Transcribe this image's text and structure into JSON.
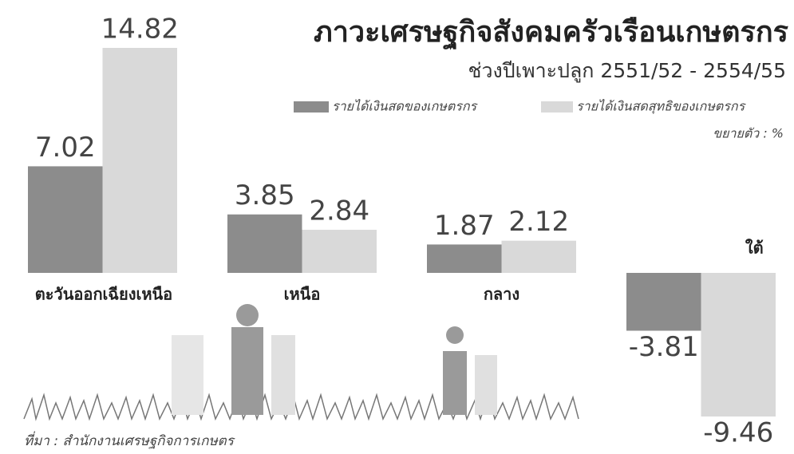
{
  "chart_data": {
    "type": "bar",
    "title": "ภาวะเศรษฐกิจสังคมครัวเรือนเกษตรกร",
    "subtitle": "ช่วงปีเพาะปลูก 2551/52 - 2554/55",
    "unit_label": "ขยายตัว : %",
    "source": "ที่มา : สำนักงานเศรษฐกิจการเกษตร",
    "categories": [
      "ตะวันออกเฉียงเหนือ",
      "เหนือ",
      "กลาง",
      "ใต้"
    ],
    "series": [
      {
        "name": "รายได้เงินสดของเกษตรกร",
        "color": "#8c8c8c",
        "values": [
          7.02,
          3.85,
          1.87,
          -3.81
        ]
      },
      {
        "name": "รายได้เงินสดสุทธิของเกษตรกร",
        "color": "#d9d9d9",
        "values": [
          14.82,
          2.84,
          2.12,
          -9.46
        ]
      }
    ]
  }
}
